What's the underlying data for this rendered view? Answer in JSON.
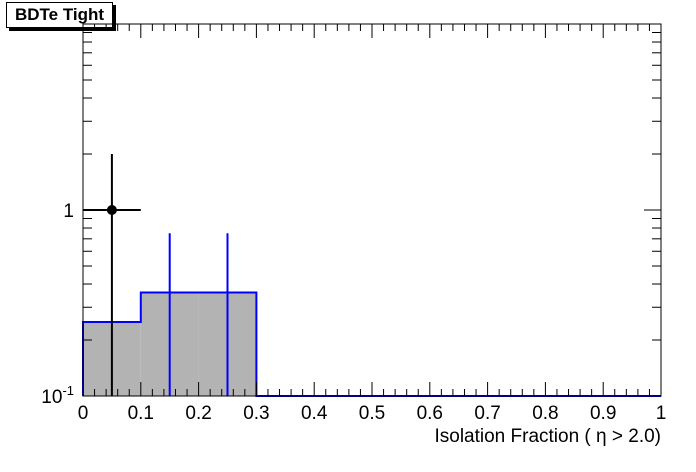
{
  "chart_data": {
    "type": "histogram",
    "title": "BDTe Tight",
    "xlabel": "Isolation Fraction ( η > 2.0)",
    "ylabel": "",
    "xlim": [
      0,
      1
    ],
    "ylim": [
      0.1,
      10
    ],
    "yscale": "log",
    "grid": false,
    "x_ticks": [
      "0",
      "0.1",
      "0.2",
      "0.3",
      "0.4",
      "0.5",
      "0.6",
      "0.7",
      "0.8",
      "0.9",
      "1"
    ],
    "y_ticks": [
      {
        "value": 0.1,
        "label": "10",
        "sup": "-1"
      },
      {
        "value": 1,
        "label": "1",
        "sup": ""
      }
    ],
    "series": [
      {
        "kind": "filled-histogram",
        "bin_edges": [
          0,
          0.1,
          0.2,
          0.3,
          0.4,
          0.5,
          0.6,
          0.7,
          0.8,
          0.9,
          1.0
        ],
        "values": [
          0.25,
          0.36,
          0.36,
          0.1,
          0.1,
          0.1,
          0.1,
          0.1,
          0.1,
          0.1
        ],
        "fill_color": "#b3b3b3",
        "line_color": "#0000ff",
        "errors": [
          {
            "x": 0.15,
            "low": 0.1,
            "high": 0.75
          },
          {
            "x": 0.25,
            "low": 0.1,
            "high": 0.75
          }
        ]
      },
      {
        "kind": "points",
        "color": "#000000",
        "points": [
          {
            "x": 0.05,
            "y": 1.0,
            "xerr": 0.05,
            "ylow": 0.1,
            "yhigh": 2.0
          }
        ]
      }
    ]
  }
}
